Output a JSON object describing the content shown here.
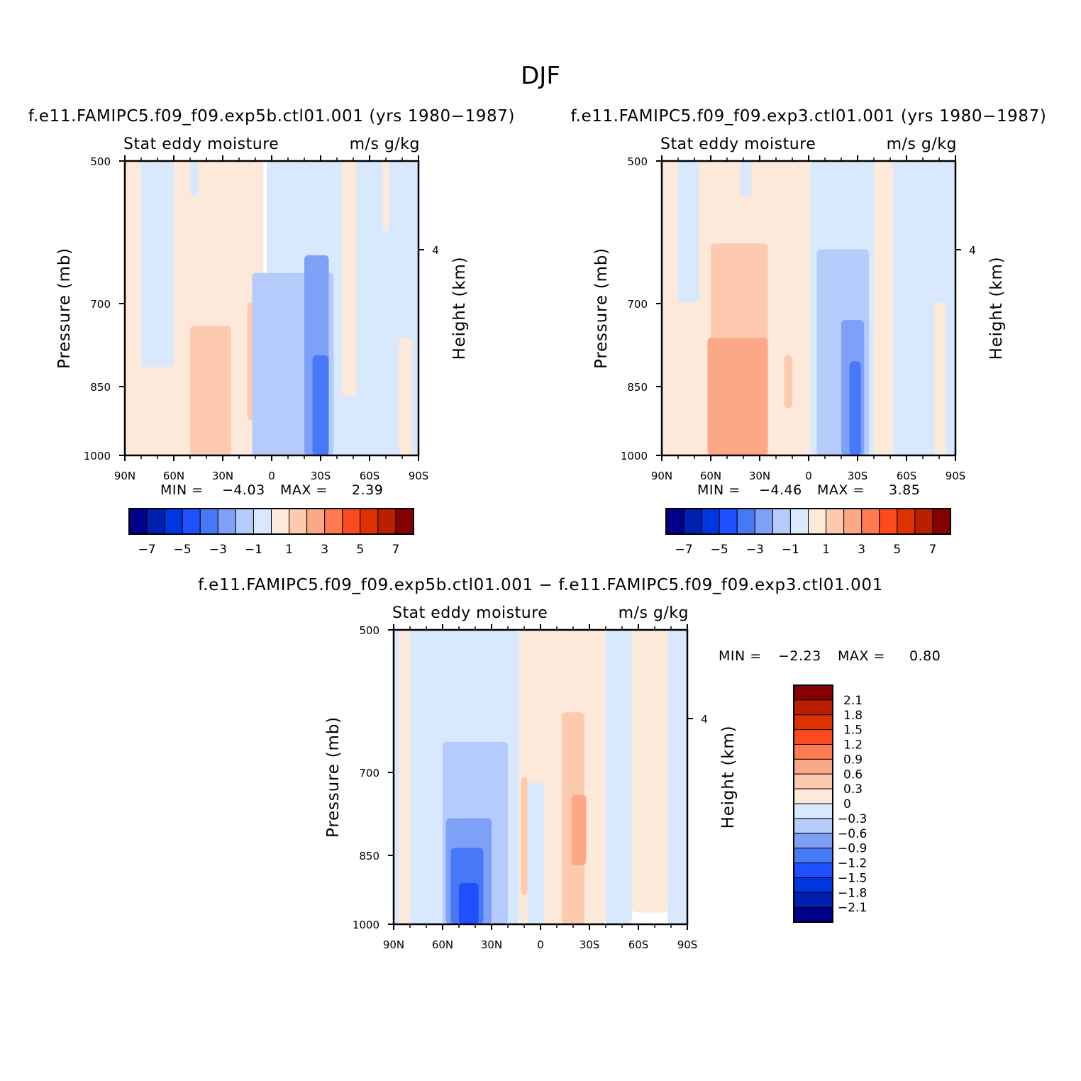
{
  "page": {
    "title": "DJF"
  },
  "colors": {
    "abs_scale": [
      "#00008b",
      "#0020b0",
      "#0036e0",
      "#1e50ff",
      "#4778f5",
      "#7ea1f7",
      "#b5cbfb",
      "#d8e8fd",
      "#fde9d9",
      "#fdcab0",
      "#fca785",
      "#ff7b4f",
      "#fb4a1e",
      "#df3100",
      "#b82000",
      "#850000"
    ],
    "diff_scale": [
      "#00008b",
      "#0020b0",
      "#0036e0",
      "#1e50ff",
      "#4778f5",
      "#7ea1f7",
      "#b5cbfb",
      "#d8e8fd",
      "#fde9d9",
      "#fdcab0",
      "#fca785",
      "#ff7b4f",
      "#fb4a1e",
      "#df3100",
      "#b82000",
      "#850000"
    ],
    "missing": "#ffffff"
  },
  "chart_data": [
    {
      "type": "heatmap",
      "case": "f.e11.FAMIPC5.f09_f09.exp5b.ctl01.001 (yrs 1980−1987)",
      "subtitle_left": "Stat eddy moisture",
      "subtitle_right": "m/s g/kg",
      "ylabel": "Pressure (mb)",
      "ylabel_right": "Height (km)",
      "x_ticks": [
        "90N",
        "60N",
        "30N",
        "0",
        "30S",
        "60S",
        "90S"
      ],
      "x_range": [
        90,
        -90
      ],
      "y_ticks": [
        "500",
        "700",
        "850",
        "1000"
      ],
      "y_range": [
        500,
        1000
      ],
      "y_ticks_right": [
        "4"
      ],
      "min_label": "MIN =",
      "min_value": "−4.03",
      "max_label": "MAX =",
      "max_value": "2.39",
      "colorbar_labels": [
        "−7",
        "−5",
        "−3",
        "−1",
        "1",
        "3",
        "5",
        "7"
      ],
      "levels": [
        -7,
        -6,
        -5,
        -4,
        -3,
        -2,
        -1,
        0,
        1,
        2,
        3,
        4,
        5,
        6,
        7
      ],
      "regions": [
        {
          "name": "nh-positive",
          "lat": [
            90,
            5
          ],
          "p": [
            500,
            1000
          ],
          "value": 0.5
        },
        {
          "name": "nh-neg-band",
          "lat": [
            80,
            60
          ],
          "p": [
            500,
            850
          ],
          "value": -0.5
        },
        {
          "name": "nh-neg-strip",
          "lat": [
            50,
            45
          ],
          "p": [
            500,
            560
          ],
          "value": -0.5
        },
        {
          "name": "nh-core",
          "lat": [
            50,
            25
          ],
          "p": [
            780,
            1000
          ],
          "value": 1.5
        },
        {
          "name": "nh-core-2",
          "lat": [
            15,
            3
          ],
          "p": [
            740,
            940
          ],
          "value": 1.5
        },
        {
          "name": "sh-negative",
          "lat": [
            3,
            -90
          ],
          "p": [
            500,
            1000
          ],
          "value": -0.5
        },
        {
          "name": "sh-neg-2",
          "lat": [
            12,
            -38
          ],
          "p": [
            690,
            1000
          ],
          "value": -1.5
        },
        {
          "name": "sh-neg-3",
          "lat": [
            -20,
            -35
          ],
          "p": [
            660,
            1000
          ],
          "value": -2.5
        },
        {
          "name": "sh-neg-4",
          "lat": [
            -25,
            -35
          ],
          "p": [
            830,
            1000
          ],
          "value": -3.5
        },
        {
          "name": "sh-pos-strip",
          "lat": [
            -43,
            -52
          ],
          "p": [
            500,
            900
          ],
          "value": 0.5
        },
        {
          "name": "sh-pos-strip-2",
          "lat": [
            -68,
            -72
          ],
          "p": [
            500,
            620
          ],
          "value": 0.5
        },
        {
          "name": "sh-pos-strip-3",
          "lat": [
            -78,
            -86
          ],
          "p": [
            800,
            1000
          ],
          "value": 0.5
        }
      ]
    },
    {
      "type": "heatmap",
      "case": "f.e11.FAMIPC5.f09_f09.exp3.ctl01.001 (yrs 1980−1987)",
      "subtitle_left": "Stat eddy moisture",
      "subtitle_right": "m/s g/kg",
      "ylabel": "Pressure (mb)",
      "ylabel_right": "Height (km)",
      "x_ticks": [
        "90N",
        "60N",
        "30N",
        "0",
        "30S",
        "60S",
        "90S"
      ],
      "x_range": [
        90,
        -90
      ],
      "y_ticks": [
        "500",
        "700",
        "850",
        "1000"
      ],
      "y_range": [
        500,
        1000
      ],
      "y_ticks_right": [
        "4"
      ],
      "min_label": "MIN =",
      "min_value": "−4.46",
      "max_label": "MAX =",
      "max_value": "3.85",
      "colorbar_labels": [
        "−7",
        "−5",
        "−3",
        "−1",
        "1",
        "3",
        "5",
        "7"
      ],
      "levels": [
        -7,
        -6,
        -5,
        -4,
        -3,
        -2,
        -1,
        0,
        1,
        2,
        3,
        4,
        5,
        6,
        7
      ],
      "regions": [
        {
          "name": "nh-positive",
          "lat": [
            90,
            -1
          ],
          "p": [
            500,
            1000
          ],
          "value": 0.5
        },
        {
          "name": "nh-neg-band",
          "lat": [
            80,
            67
          ],
          "p": [
            500,
            740
          ],
          "value": -0.5
        },
        {
          "name": "nh-neg-strip",
          "lat": [
            42,
            35
          ],
          "p": [
            500,
            560
          ],
          "value": -0.5
        },
        {
          "name": "nh-core",
          "lat": [
            60,
            25
          ],
          "p": [
            640,
            1000
          ],
          "value": 1.5
        },
        {
          "name": "nh-core-2",
          "lat": [
            62,
            25
          ],
          "p": [
            800,
            1000
          ],
          "value": 2.5
        },
        {
          "name": "nh-core-3",
          "lat": [
            15,
            10
          ],
          "p": [
            830,
            920
          ],
          "value": 1.5
        },
        {
          "name": "sh-negative",
          "lat": [
            -1,
            -90
          ],
          "p": [
            500,
            1000
          ],
          "value": -0.5
        },
        {
          "name": "sh-neg-2",
          "lat": [
            -5,
            -37
          ],
          "p": [
            650,
            1000
          ],
          "value": -1.5
        },
        {
          "name": "sh-neg-3",
          "lat": [
            -20,
            -34
          ],
          "p": [
            770,
            1000
          ],
          "value": -2.5
        },
        {
          "name": "sh-neg-4",
          "lat": [
            -25,
            -32
          ],
          "p": [
            840,
            1000
          ],
          "value": -3.5
        },
        {
          "name": "sh-pos-strip",
          "lat": [
            -40,
            -52
          ],
          "p": [
            500,
            1000
          ],
          "value": 0.5
        },
        {
          "name": "sh-pos-strip-3",
          "lat": [
            -77,
            -84
          ],
          "p": [
            740,
            1000
          ],
          "value": 0.5
        }
      ]
    },
    {
      "type": "heatmap",
      "case": "f.e11.FAMIPC5.f09_f09.exp5b.ctl01.001 − f.e11.FAMIPC5.f09_f09.exp3.ctl01.001",
      "subtitle_left": "Stat eddy moisture",
      "subtitle_right": "m/s g/kg",
      "ylabel": "Pressure (mb)",
      "ylabel_right": "Height (km)",
      "x_ticks": [
        "90N",
        "60N",
        "30N",
        "0",
        "30S",
        "60S",
        "90S"
      ],
      "x_range": [
        90,
        -90
      ],
      "y_ticks": [
        "500",
        "700",
        "850",
        "1000"
      ],
      "y_range": [
        500,
        1000
      ],
      "y_ticks_right": [
        "4"
      ],
      "min_label": "MIN =",
      "min_value": "−2.23",
      "max_label": "MAX =",
      "max_value": "0.80",
      "colorbar_labels": [
        "2.1",
        "1.8",
        "1.5",
        "1.2",
        "0.9",
        "0.6",
        "0.3",
        "0",
        "−0.3",
        "−0.6",
        "−0.9",
        "−1.2",
        "−1.5",
        "−1.8",
        "−2.1"
      ],
      "levels": [
        -2.1,
        -1.8,
        -1.5,
        -1.2,
        -0.9,
        -0.6,
        -0.3,
        0,
        0.3,
        0.6,
        0.9,
        1.2,
        1.5,
        1.8,
        2.1
      ],
      "regions": [
        {
          "name": "nh-negative",
          "lat": [
            90,
            13
          ],
          "p": [
            500,
            1000
          ],
          "value": -0.15
        },
        {
          "name": "nh-pos-strip",
          "lat": [
            87,
            80
          ],
          "p": [
            500,
            1000
          ],
          "value": 0.15
        },
        {
          "name": "nh-neg-2",
          "lat": [
            60,
            20
          ],
          "p": [
            690,
            1000
          ],
          "value": -0.45
        },
        {
          "name": "nh-neg-3",
          "lat": [
            58,
            30
          ],
          "p": [
            820,
            1000
          ],
          "value": -0.75
        },
        {
          "name": "nh-neg-4",
          "lat": [
            55,
            35
          ],
          "p": [
            870,
            1000
          ],
          "value": -1.05
        },
        {
          "name": "nh-neg-5",
          "lat": [
            50,
            38
          ],
          "p": [
            930,
            1000
          ],
          "value": -1.35
        },
        {
          "name": "sh-positive",
          "lat": [
            13,
            -40
          ],
          "p": [
            500,
            1000
          ],
          "value": 0.15
        },
        {
          "name": "eq-neg-strip",
          "lat": [
            8,
            -2
          ],
          "p": [
            760,
            1000
          ],
          "value": -0.15
        },
        {
          "name": "eq-pos-strip",
          "lat": [
            12,
            8
          ],
          "p": [
            750,
            950
          ],
          "value": 0.45
        },
        {
          "name": "sh-pos-2",
          "lat": [
            -13,
            -27
          ],
          "p": [
            640,
            1000
          ],
          "value": 0.45
        },
        {
          "name": "sh-pos-3",
          "lat": [
            -19,
            -28
          ],
          "p": [
            780,
            900
          ],
          "value": 0.75
        },
        {
          "name": "sh-neg-strip",
          "lat": [
            -40,
            -56
          ],
          "p": [
            500,
            1000
          ],
          "value": -0.15
        },
        {
          "name": "sh-pos-far",
          "lat": [
            -56,
            -78
          ],
          "p": [
            500,
            980
          ],
          "value": 0.15
        },
        {
          "name": "sh-neg-far",
          "lat": [
            -78,
            -90
          ],
          "p": [
            500,
            1000
          ],
          "value": -0.15
        }
      ]
    }
  ]
}
